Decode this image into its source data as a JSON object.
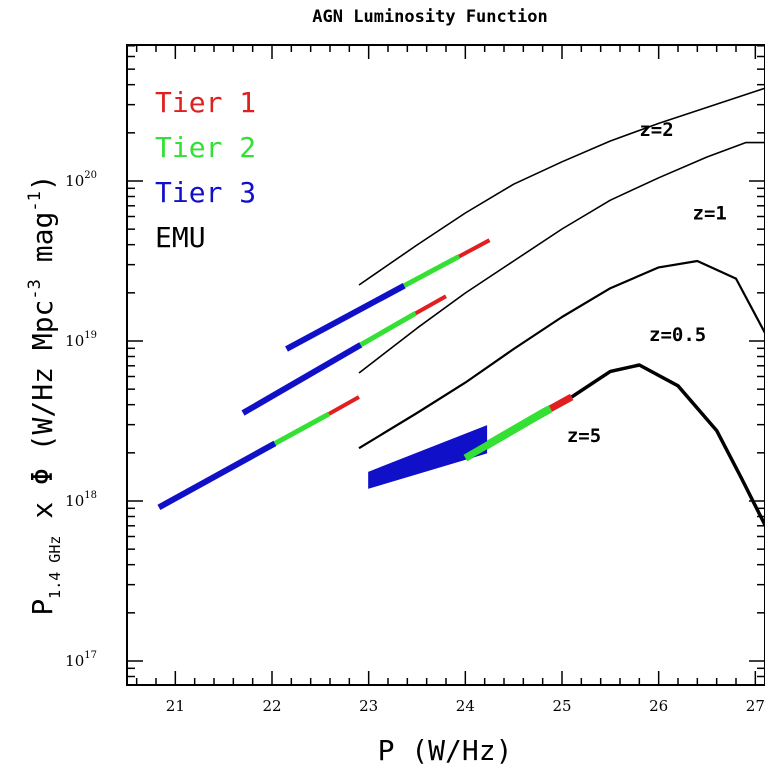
{
  "chart_data": {
    "type": "line",
    "title": "AGN Luminosity Function",
    "xlabel": "P (W/Hz)",
    "ylabel_main": "P",
    "ylabel_sub": "1.4 GHz",
    "ylabel_rest": " x Φ (W/Hz Mpc",
    "ylabel_exp1": "-3",
    "ylabel_mid": " mag",
    "ylabel_exp2": "-1",
    "ylabel_close": ")",
    "xlim": [
      20.5,
      27.1
    ],
    "ylim_log10": [
      16.85,
      20.85
    ],
    "yscale": "log",
    "x_ticks": [
      "21",
      "22",
      "23",
      "24",
      "25",
      "26",
      "27"
    ],
    "y_ticks": [
      {
        "base": "10",
        "exp": "17",
        "log": 17
      },
      {
        "base": "10",
        "exp": "18",
        "log": 18
      },
      {
        "base": "10",
        "exp": "19",
        "log": 19
      },
      {
        "base": "10",
        "exp": "20",
        "log": 20
      }
    ],
    "legend": {
      "placement": "top-left",
      "entries": [
        {
          "label": "Tier 1",
          "color": "#e02020"
        },
        {
          "label": "Tier 2",
          "color": "#33e033"
        },
        {
          "label": "Tier 3",
          "color": "#1010c8"
        },
        {
          "label": "EMU",
          "color": "#000000"
        }
      ]
    },
    "curve_labels": [
      {
        "text": "z=2",
        "x": 25.8,
        "y_log10": 20.28
      },
      {
        "text": "z=1",
        "x": 26.35,
        "y_log10": 19.76
      },
      {
        "text": "z=0.5",
        "x": 25.9,
        "y_log10": 19.0
      },
      {
        "text": "z=5",
        "x": 25.05,
        "y_log10": 18.37
      }
    ],
    "series": [
      {
        "name": "z=2",
        "color": "#000000",
        "x": [
          22.9,
          23.5,
          24.0,
          24.5,
          25.0,
          25.5,
          26.0,
          26.5,
          27.0,
          27.1
        ],
        "y_log10": [
          19.35,
          19.6,
          19.8,
          19.98,
          20.12,
          20.25,
          20.36,
          20.46,
          20.56,
          20.58
        ],
        "segments": [
          {
            "tier": "Tier 3",
            "x": [
              22.15,
              23.35
            ]
          },
          {
            "tier": "Tier 2",
            "x": [
              23.35,
              23.95
            ]
          },
          {
            "tier": "Tier 1",
            "x": [
              23.95,
              24.25
            ]
          }
        ],
        "tier_x": [
          22.15,
          22.5,
          23.0,
          23.35,
          23.7,
          24.0,
          24.25
        ],
        "tier_y_log10": [
          18.95,
          19.08,
          19.23,
          19.34,
          19.45,
          19.55,
          19.63
        ]
      },
      {
        "name": "z=1",
        "color": "#000000",
        "x": [
          22.9,
          23.5,
          24.0,
          24.5,
          25.0,
          25.5,
          26.0,
          26.5,
          26.9,
          27.1
        ],
        "y_log10": [
          18.8,
          19.08,
          19.3,
          19.5,
          19.7,
          19.88,
          20.02,
          20.15,
          20.24,
          20.24
        ],
        "tier_x": [
          21.7,
          22.2,
          22.7,
          22.9,
          23.3,
          23.8
        ],
        "tier_y_log10": [
          18.55,
          18.72,
          18.9,
          18.97,
          19.11,
          19.28
        ]
      },
      {
        "name": "z=0.5",
        "color": "#000000",
        "x": [
          22.9,
          23.5,
          24.0,
          24.5,
          25.0,
          25.5,
          26.0,
          26.4,
          26.8,
          27.1
        ],
        "y_log10": [
          18.33,
          18.55,
          18.74,
          18.95,
          19.15,
          19.33,
          19.46,
          19.5,
          19.39,
          19.05
        ],
        "tier_x": [
          20.83,
          21.4,
          22.0,
          22.4,
          22.9
        ],
        "tier_y_log10": [
          17.96,
          18.15,
          18.35,
          18.48,
          18.65
        ]
      },
      {
        "name": "z=5",
        "color": "#000000",
        "x": [
          25.1,
          25.5,
          25.8,
          26.2,
          26.6,
          26.85,
          27.1
        ],
        "y_log10": [
          18.65,
          18.81,
          18.85,
          18.72,
          18.44,
          18.15,
          17.85
        ],
        "tier_x": [
          24.0,
          24.4,
          24.8,
          25.1
        ],
        "tier_y_log10": [
          18.27,
          18.42,
          18.55,
          18.65
        ],
        "tier3_wedge": {
          "x": [
            23.0,
            24.22
          ],
          "y_log10_low": [
            18.08,
            18.3
          ],
          "y_log10_high": [
            18.18,
            18.47
          ]
        }
      }
    ]
  }
}
